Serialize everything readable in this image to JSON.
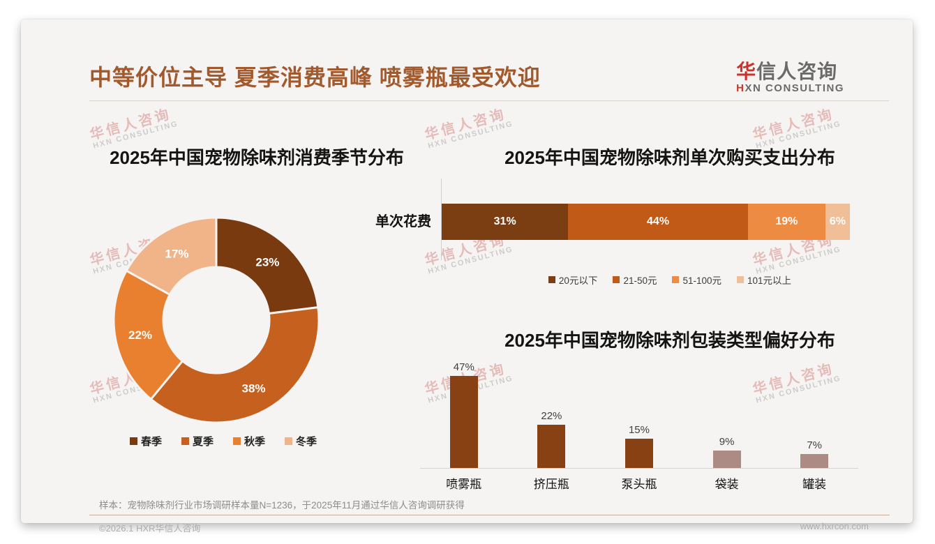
{
  "header": {
    "title": "中等价位主导 夏季消费高峰 喷雾瓶最受欢迎",
    "logo_zh_accent": "华",
    "logo_zh_rest": "信人咨询",
    "logo_en_accent": "H",
    "logo_en_rest": "XN CONSULTING"
  },
  "watermark": {
    "line1": "华信人咨询",
    "line2": "HXN CONSULTING"
  },
  "colors": {
    "title_accent": "#a2592b",
    "logo_red": "#c8342b",
    "card_background": "#f5f4f2"
  },
  "chart_data": [
    {
      "type": "pie",
      "subtype": "donut",
      "title": "2025年中国宠物除味剂消费季节分布",
      "categories": [
        "春季",
        "夏季",
        "秋季",
        "冬季"
      ],
      "values": [
        23,
        38,
        22,
        17
      ],
      "labels": [
        "23%",
        "38%",
        "22%",
        "17%"
      ],
      "unit": "%",
      "colors": [
        "#7a3a10",
        "#c6601e",
        "#e8802f",
        "#f1b488"
      ],
      "start_angle": "top",
      "direction": "clockwise",
      "legend_position": "bottom"
    },
    {
      "type": "bar",
      "subtype": "horizontal-stacked",
      "title": "2025年中国宠物除味剂单次购买支出分布",
      "row_label": "单次花费",
      "series": [
        {
          "name": "20元以下",
          "value": 31,
          "label": "31%",
          "color": "#7b3d12"
        },
        {
          "name": "21-50元",
          "value": 44,
          "label": "44%",
          "color": "#c05a16"
        },
        {
          "name": "51-100元",
          "value": 19,
          "label": "19%",
          "color": "#ee8b42"
        },
        {
          "name": "101元以上",
          "value": 6,
          "label": "6%",
          "color": "#f0be97"
        }
      ],
      "unit": "%",
      "xlim": [
        0,
        100
      ],
      "legend_position": "bottom"
    },
    {
      "type": "bar",
      "subtype": "vertical",
      "title": "2025年中国宠物除味剂包装类型偏好分布",
      "categories": [
        "喷雾瓶",
        "挤压瓶",
        "泵头瓶",
        "袋装",
        "罐装"
      ],
      "values": [
        47,
        22,
        15,
        9,
        7
      ],
      "labels": [
        "47%",
        "22%",
        "15%",
        "9%",
        "7%"
      ],
      "unit": "%",
      "colors": [
        "#874112",
        "#874112",
        "#874112",
        "#ac8b85",
        "#ac8b85"
      ],
      "ylim": [
        0,
        47
      ],
      "grid": false,
      "legend_position": "none"
    }
  ],
  "footer": {
    "note": "样本：宠物除味剂行业市场调研样本量N=1236，于2025年11月通过华信人咨询调研获得",
    "copyright": "©2026.1 HXR华信人咨询",
    "website": "www.hxrcon.com"
  }
}
